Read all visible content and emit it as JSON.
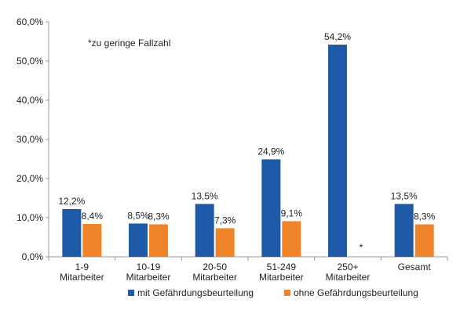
{
  "chart_data": {
    "type": "bar",
    "note": "*zu geringe Fallzahl",
    "categories": [
      [
        "1-9",
        "Mitarbeiter"
      ],
      [
        "10-19",
        "Mitarbeiter"
      ],
      [
        "20-50",
        "Mitarbeiter"
      ],
      [
        "51-249",
        "Mitarbeiter"
      ],
      [
        "250+",
        "Mitarbeiter"
      ],
      [
        "Gesamt"
      ]
    ],
    "series": [
      {
        "name": "mit Gefährdungsbeurteilung",
        "color": "#1f5aa8",
        "values": [
          12.2,
          8.5,
          13.5,
          24.9,
          54.2,
          13.5
        ],
        "labels": [
          "12,2%",
          "8,5%",
          "13,5%",
          "24,9%",
          "54,2%",
          "13,5%"
        ]
      },
      {
        "name": "ohne Gefährdungsbeurteilung",
        "color": "#f0842a",
        "values": [
          8.4,
          8.3,
          7.3,
          9.1,
          null,
          8.3
        ],
        "labels": [
          "8,4%",
          "8,3%",
          "7,3%",
          "9,1%",
          "*",
          "8,3%"
        ]
      }
    ],
    "y_ticks": [
      "0,0%",
      "10,0%",
      "20,0%",
      "30,0%",
      "40,0%",
      "50,0%",
      "60,0%"
    ],
    "ylim": [
      0,
      60
    ],
    "grid": false,
    "legend_position": "bottom"
  }
}
